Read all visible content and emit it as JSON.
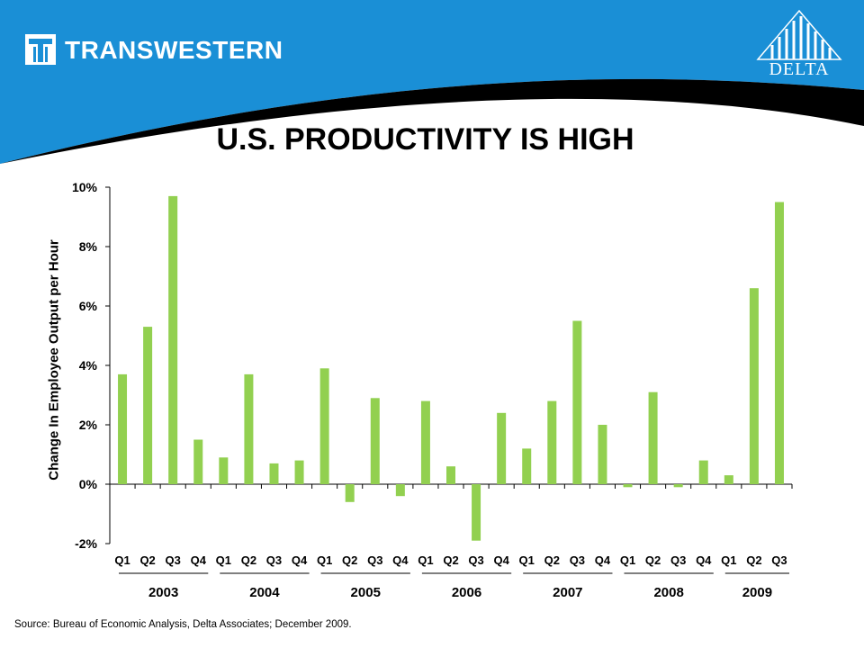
{
  "header": {
    "brand_name": "TRANSWESTERN",
    "partner_name": "DELTA",
    "blue_color": "#1a8fd6",
    "dark_color": "#000000"
  },
  "page_title": "U.S. PRODUCTIVITY IS HIGH",
  "chart_data": {
    "type": "bar",
    "ylabel": "Change In Employee Output per Hour",
    "xlabel": "",
    "ylim": [
      -2,
      10
    ],
    "yticks": [
      "10%",
      "8%",
      "6%",
      "4%",
      "2%",
      "0%",
      "-2%"
    ],
    "ytick_values": [
      10,
      8,
      6,
      4,
      2,
      0,
      -2
    ],
    "bar_color": "#92d050",
    "categories": [
      "Q1",
      "Q2",
      "Q3",
      "Q4",
      "Q1",
      "Q2",
      "Q3",
      "Q4",
      "Q1",
      "Q2",
      "Q3",
      "Q4",
      "Q1",
      "Q2",
      "Q3",
      "Q4",
      "Q1",
      "Q2",
      "Q3",
      "Q4",
      "Q1",
      "Q2",
      "Q3",
      "Q4",
      "Q1",
      "Q2",
      "Q3"
    ],
    "values": [
      3.7,
      5.3,
      9.7,
      1.5,
      0.9,
      3.7,
      0.7,
      0.8,
      3.9,
      -0.6,
      2.9,
      -0.4,
      2.8,
      0.6,
      -1.9,
      2.4,
      1.2,
      2.8,
      5.5,
      2.0,
      -0.1,
      3.1,
      -0.1,
      0.8,
      0.3,
      6.6,
      9.5
    ],
    "year_groups": [
      {
        "label": "2003",
        "start": 0,
        "count": 4
      },
      {
        "label": "2004",
        "start": 4,
        "count": 4
      },
      {
        "label": "2005",
        "start": 8,
        "count": 4
      },
      {
        "label": "2006",
        "start": 12,
        "count": 4
      },
      {
        "label": "2007",
        "start": 16,
        "count": 4
      },
      {
        "label": "2008",
        "start": 20,
        "count": 4
      },
      {
        "label": "2009",
        "start": 24,
        "count": 3
      }
    ]
  },
  "source": "Source: Bureau  of Economic Analysis, Delta Associates; December 2009."
}
